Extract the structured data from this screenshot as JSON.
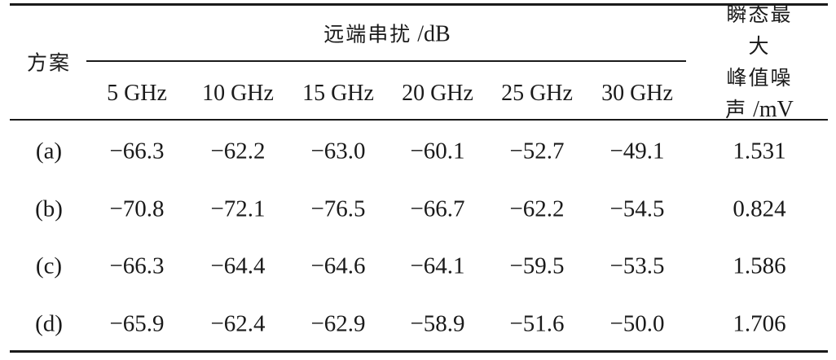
{
  "table": {
    "row_header": "方案",
    "group_header_cn": "远端串扰",
    "group_header_unit": " /dB",
    "last_header_line1": "瞬态最大",
    "last_header_line2": "峰值噪",
    "last_header_line3_cn": "声",
    "last_header_line3_unit": " /mV",
    "freqs": [
      "5 GHz",
      "10 GHz",
      "15 GHz",
      "20 GHz",
      "25 GHz",
      "30 GHz"
    ],
    "rows": [
      {
        "label": "(a)",
        "values": [
          "−66.3",
          "−62.2",
          "−63.0",
          "−60.1",
          "−52.7",
          "−49.1"
        ],
        "noise": "1.531"
      },
      {
        "label": "(b)",
        "values": [
          "−70.8",
          "−72.1",
          "−76.5",
          "−66.7",
          "−62.2",
          "−54.5"
        ],
        "noise": "0.824"
      },
      {
        "label": "(c)",
        "values": [
          "−66.3",
          "−64.4",
          "−64.6",
          "−64.1",
          "−59.5",
          "−53.5"
        ],
        "noise": "1.586"
      },
      {
        "label": "(d)",
        "values": [
          "−65.9",
          "−62.4",
          "−62.9",
          "−58.9",
          "−51.6",
          "−50.0"
        ],
        "noise": "1.706"
      }
    ]
  }
}
